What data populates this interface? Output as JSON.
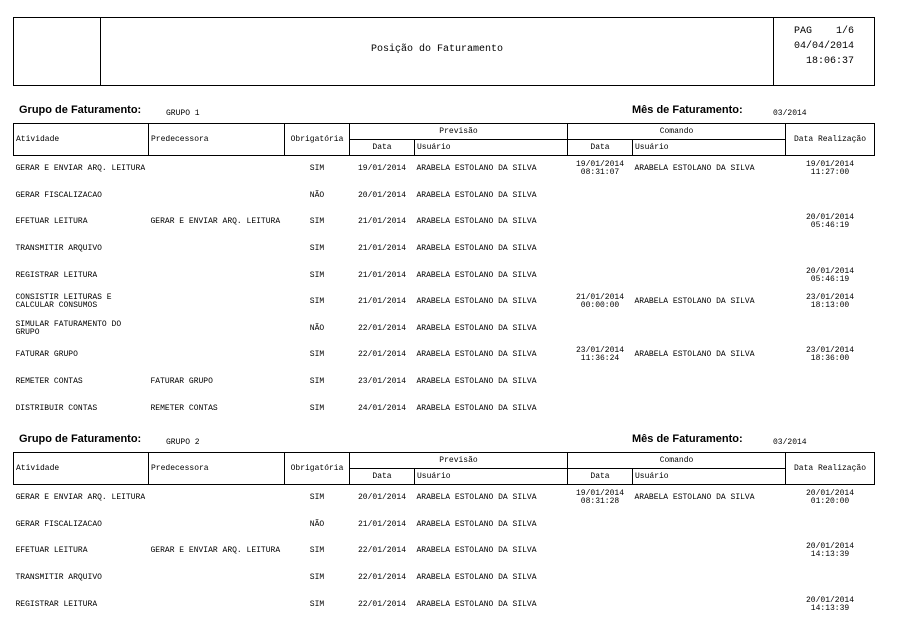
{
  "header": {
    "title": "Posição do Faturamento",
    "page_label": "PAG",
    "page": "1/6",
    "date": "04/04/2014",
    "time": "18:06:37"
  },
  "columns": {
    "atividade": "Atividade",
    "predecessora": "Predecessora",
    "obrigatoria": "Obrigatória",
    "previsao": "Previsão",
    "comando": "Comando",
    "data": "Data",
    "usuario": "Usuário",
    "data_realizacao": "Data Realização"
  },
  "labels": {
    "grupo": "Grupo de Faturamento:",
    "mes": "Mês de Faturamento:"
  },
  "groups": [
    {
      "grupo": "GRUPO 1",
      "mes": "03/2014",
      "rows": [
        {
          "atividade": "GERAR E ENVIAR ARQ. LEITURA",
          "predecessora": "",
          "obrigatoria": "SIM",
          "prev_data": "19/01/2014",
          "prev_usuario": "ARABELA ESTOLANO DA SILVA",
          "cmd_data": "19/01/2014",
          "cmd_hora": "08:31:07",
          "cmd_usuario": "ARABELA ESTOLANO DA SILVA",
          "real_data": "19/01/2014",
          "real_hora": "11:27:00"
        },
        {
          "atividade": "GERAR FISCALIZACAO",
          "predecessora": "",
          "obrigatoria": "NÃO",
          "prev_data": "20/01/2014",
          "prev_usuario": "ARABELA ESTOLANO DA SILVA",
          "cmd_data": "",
          "cmd_hora": "",
          "cmd_usuario": "",
          "real_data": "",
          "real_hora": ""
        },
        {
          "atividade": "EFETUAR LEITURA",
          "predecessora": "GERAR E ENVIAR ARQ. LEITURA",
          "obrigatoria": "SIM",
          "prev_data": "21/01/2014",
          "prev_usuario": "ARABELA ESTOLANO DA SILVA",
          "cmd_data": "",
          "cmd_hora": "",
          "cmd_usuario": "",
          "real_data": "20/01/2014",
          "real_hora": "05:46:19"
        },
        {
          "atividade": "TRANSMITIR ARQUIVO",
          "predecessora": "",
          "obrigatoria": "SIM",
          "prev_data": "21/01/2014",
          "prev_usuario": "ARABELA ESTOLANO DA SILVA",
          "cmd_data": "",
          "cmd_hora": "",
          "cmd_usuario": "",
          "real_data": "",
          "real_hora": ""
        },
        {
          "atividade": "REGISTRAR LEITURA",
          "predecessora": "",
          "obrigatoria": "SIM",
          "prev_data": "21/01/2014",
          "prev_usuario": "ARABELA ESTOLANO DA SILVA",
          "cmd_data": "",
          "cmd_hora": "",
          "cmd_usuario": "",
          "real_data": "20/01/2014",
          "real_hora": "05:46:19"
        },
        {
          "atividade": "CONSISTIR LEITURAS E CALCULAR CONSUMOS",
          "predecessora": "",
          "obrigatoria": "SIM",
          "prev_data": "21/01/2014",
          "prev_usuario": "ARABELA ESTOLANO DA SILVA",
          "cmd_data": "21/01/2014",
          "cmd_hora": "00:00:00",
          "cmd_usuario": "ARABELA ESTOLANO DA SILVA",
          "real_data": "23/01/2014",
          "real_hora": "18:13:00"
        },
        {
          "atividade": "SIMULAR FATURAMENTO DO GRUPO",
          "predecessora": "",
          "obrigatoria": "NÃO",
          "prev_data": "22/01/2014",
          "prev_usuario": "ARABELA ESTOLANO DA SILVA",
          "cmd_data": "",
          "cmd_hora": "",
          "cmd_usuario": "",
          "real_data": "",
          "real_hora": ""
        },
        {
          "atividade": "FATURAR GRUPO",
          "predecessora": "",
          "obrigatoria": "SIM",
          "prev_data": "22/01/2014",
          "prev_usuario": "ARABELA ESTOLANO DA SILVA",
          "cmd_data": "23/01/2014",
          "cmd_hora": "11:36:24",
          "cmd_usuario": "ARABELA ESTOLANO DA SILVA",
          "real_data": "23/01/2014",
          "real_hora": "18:36:00"
        },
        {
          "atividade": "REMETER CONTAS",
          "predecessora": "FATURAR GRUPO",
          "obrigatoria": "SIM",
          "prev_data": "23/01/2014",
          "prev_usuario": "ARABELA ESTOLANO DA SILVA",
          "cmd_data": "",
          "cmd_hora": "",
          "cmd_usuario": "",
          "real_data": "",
          "real_hora": ""
        },
        {
          "atividade": "DISTRIBUIR CONTAS",
          "predecessora": "REMETER CONTAS",
          "obrigatoria": "SIM",
          "prev_data": "24/01/2014",
          "prev_usuario": "ARABELA ESTOLANO DA SILVA",
          "cmd_data": "",
          "cmd_hora": "",
          "cmd_usuario": "",
          "real_data": "",
          "real_hora": ""
        }
      ]
    },
    {
      "grupo": "GRUPO 2",
      "mes": "03/2014",
      "rows": [
        {
          "atividade": "GERAR E ENVIAR ARQ. LEITURA",
          "predecessora": "",
          "obrigatoria": "SIM",
          "prev_data": "20/01/2014",
          "prev_usuario": "ARABELA ESTOLANO DA SILVA",
          "cmd_data": "19/01/2014",
          "cmd_hora": "08:31:28",
          "cmd_usuario": "ARABELA ESTOLANO DA SILVA",
          "real_data": "20/01/2014",
          "real_hora": "01:20:00"
        },
        {
          "atividade": "GERAR FISCALIZACAO",
          "predecessora": "",
          "obrigatoria": "NÃO",
          "prev_data": "21/01/2014",
          "prev_usuario": "ARABELA ESTOLANO DA SILVA",
          "cmd_data": "",
          "cmd_hora": "",
          "cmd_usuario": "",
          "real_data": "",
          "real_hora": ""
        },
        {
          "atividade": "EFETUAR LEITURA",
          "predecessora": "GERAR E ENVIAR ARQ. LEITURA",
          "obrigatoria": "SIM",
          "prev_data": "22/01/2014",
          "prev_usuario": "ARABELA ESTOLANO DA SILVA",
          "cmd_data": "",
          "cmd_hora": "",
          "cmd_usuario": "",
          "real_data": "20/01/2014",
          "real_hora": "14:13:39"
        },
        {
          "atividade": "TRANSMITIR ARQUIVO",
          "predecessora": "",
          "obrigatoria": "SIM",
          "prev_data": "22/01/2014",
          "prev_usuario": "ARABELA ESTOLANO DA SILVA",
          "cmd_data": "",
          "cmd_hora": "",
          "cmd_usuario": "",
          "real_data": "",
          "real_hora": ""
        },
        {
          "atividade": "REGISTRAR LEITURA",
          "predecessora": "",
          "obrigatoria": "SIM",
          "prev_data": "22/01/2014",
          "prev_usuario": "ARABELA ESTOLANO DA SILVA",
          "cmd_data": "",
          "cmd_hora": "",
          "cmd_usuario": "",
          "real_data": "20/01/2014",
          "real_hora": "14:13:39"
        }
      ]
    }
  ]
}
